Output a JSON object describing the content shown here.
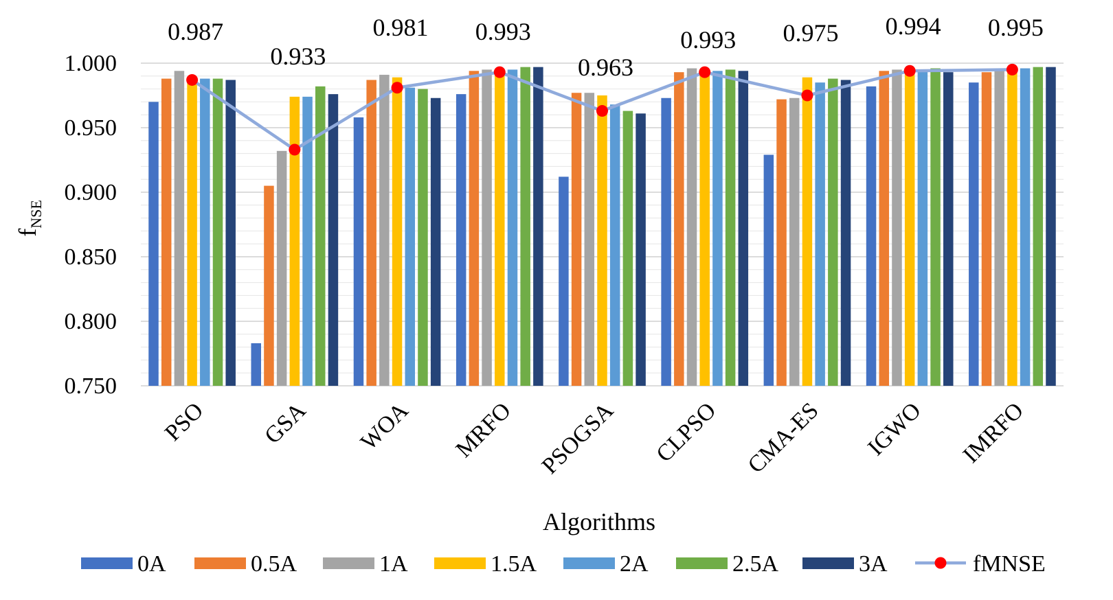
{
  "chart_data": {
    "type": "bar",
    "title": "",
    "xlabel": "Algorithms",
    "ylabel": "f",
    "ylabel_subscript": "NSE",
    "ylim": [
      0.75,
      1.0
    ],
    "yticks": [
      "0.750",
      "0.800",
      "0.850",
      "0.900",
      "0.950",
      "1.000"
    ],
    "grid": "horizontal",
    "legend_position": "bottom",
    "categories": [
      "PSO",
      "GSA",
      "WOA",
      "MRFO",
      "PSOGSA",
      "CLPSO",
      "CMA-ES",
      "IGWO",
      "IMRFO"
    ],
    "series": [
      {
        "name": "0A",
        "color": "#4472C4",
        "values": [
          0.97,
          0.783,
          0.958,
          0.976,
          0.912,
          0.973,
          0.929,
          0.982,
          0.985
        ]
      },
      {
        "name": "0.5A",
        "color": "#ED7D31",
        "values": [
          0.988,
          0.905,
          0.987,
          0.994,
          0.977,
          0.993,
          0.972,
          0.994,
          0.993
        ]
      },
      {
        "name": "1A",
        "color": "#A5A5A5",
        "values": [
          0.994,
          0.932,
          0.991,
          0.995,
          0.977,
          0.996,
          0.973,
          0.995,
          0.995
        ]
      },
      {
        "name": "1.5A",
        "color": "#FFC000",
        "values": [
          0.988,
          0.974,
          0.989,
          0.994,
          0.975,
          0.995,
          0.989,
          0.996,
          0.996
        ]
      },
      {
        "name": "2A",
        "color": "#5B9BD5",
        "values": [
          0.988,
          0.974,
          0.981,
          0.995,
          0.968,
          0.994,
          0.985,
          0.995,
          0.996
        ]
      },
      {
        "name": "2.5A",
        "color": "#70AD47",
        "values": [
          0.988,
          0.982,
          0.98,
          0.997,
          0.963,
          0.995,
          0.988,
          0.996,
          0.997
        ]
      },
      {
        "name": "3A",
        "color": "#264478",
        "values": [
          0.987,
          0.976,
          0.973,
          0.997,
          0.961,
          0.994,
          0.987,
          0.993,
          0.997
        ]
      }
    ],
    "line_series": {
      "name": "fMNSE",
      "line_color": "#8FAADC",
      "marker_color": "#FF0000",
      "values": [
        0.987,
        0.933,
        0.981,
        0.993,
        0.963,
        0.993,
        0.975,
        0.994,
        0.995
      ],
      "labels": [
        "0.987",
        "0.933",
        "0.981",
        "0.993",
        "0.963",
        "0.993",
        "0.975",
        "0.994",
        "0.995"
      ]
    }
  }
}
